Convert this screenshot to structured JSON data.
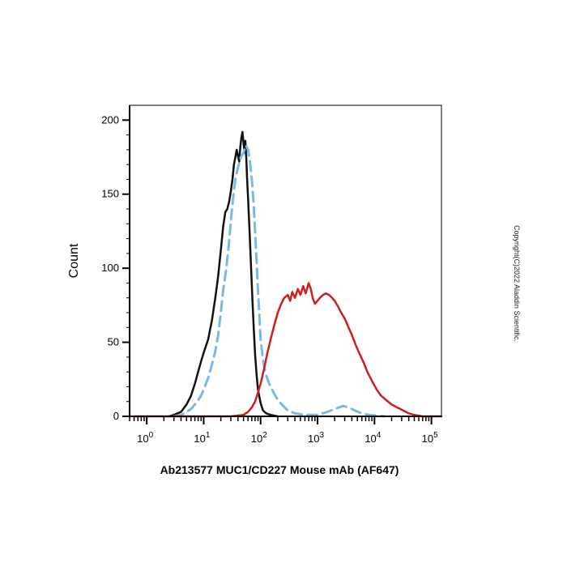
{
  "chart_data": {
    "type": "line",
    "title": "",
    "xlabel": "Ab213577 MUC1/CD227 Mouse mAb (AF647)",
    "ylabel": "Count",
    "x_scale": "log",
    "xlim": [
      0.5,
      150000
    ],
    "ylim": [
      0,
      210
    ],
    "x_ticks": [
      {
        "value": 1,
        "base": "10",
        "exp": "0"
      },
      {
        "value": 10,
        "base": "10",
        "exp": "1"
      },
      {
        "value": 100,
        "base": "10",
        "exp": "2"
      },
      {
        "value": 1000,
        "base": "10",
        "exp": "3"
      },
      {
        "value": 10000,
        "base": "10",
        "exp": "4"
      },
      {
        "value": 100000,
        "base": "10",
        "exp": "5"
      }
    ],
    "y_ticks": [
      {
        "value": 0,
        "label": "0"
      },
      {
        "value": 50,
        "label": "50"
      },
      {
        "value": 100,
        "label": "100"
      },
      {
        "value": 150,
        "label": "150"
      },
      {
        "value": 200,
        "label": "200"
      }
    ],
    "grid": false,
    "legend": "none",
    "series": [
      {
        "color": "#111111",
        "style": "solid",
        "points": [
          [
            2.5,
            0
          ],
          [
            3,
            1
          ],
          [
            4,
            3
          ],
          [
            5,
            8
          ],
          [
            6,
            14
          ],
          [
            7,
            22
          ],
          [
            8,
            30
          ],
          [
            9,
            37
          ],
          [
            10,
            43
          ],
          [
            12,
            52
          ],
          [
            14,
            65
          ],
          [
            16,
            80
          ],
          [
            18,
            95
          ],
          [
            20,
            112
          ],
          [
            22,
            128
          ],
          [
            24,
            138
          ],
          [
            26,
            140
          ],
          [
            28,
            145
          ],
          [
            30,
            152
          ],
          [
            32,
            160
          ],
          [
            34,
            170
          ],
          [
            36,
            175
          ],
          [
            38,
            180
          ],
          [
            40,
            176
          ],
          [
            42,
            172
          ],
          [
            44,
            182
          ],
          [
            46,
            188
          ],
          [
            48,
            192
          ],
          [
            50,
            185
          ],
          [
            52,
            178
          ],
          [
            54,
            186
          ],
          [
            56,
            175
          ],
          [
            58,
            160
          ],
          [
            60,
            148
          ],
          [
            64,
            125
          ],
          [
            68,
            100
          ],
          [
            72,
            78
          ],
          [
            76,
            58
          ],
          [
            80,
            42
          ],
          [
            85,
            28
          ],
          [
            90,
            18
          ],
          [
            100,
            9
          ],
          [
            110,
            4
          ],
          [
            125,
            2
          ],
          [
            150,
            1
          ],
          [
            200,
            0
          ]
        ]
      },
      {
        "color": "#7ab8e6",
        "style": "dashed",
        "points": [
          [
            3,
            0
          ],
          [
            4,
            1
          ],
          [
            5,
            3
          ],
          [
            6,
            5
          ],
          [
            7,
            8
          ],
          [
            8,
            11
          ],
          [
            9,
            14
          ],
          [
            10,
            18
          ],
          [
            12,
            26
          ],
          [
            14,
            35
          ],
          [
            16,
            44
          ],
          [
            18,
            55
          ],
          [
            20,
            70
          ],
          [
            22,
            85
          ],
          [
            25,
            100
          ],
          [
            28,
            118
          ],
          [
            30,
            132
          ],
          [
            33,
            148
          ],
          [
            36,
            160
          ],
          [
            40,
            168
          ],
          [
            45,
            175
          ],
          [
            50,
            178
          ],
          [
            55,
            183
          ],
          [
            60,
            180
          ],
          [
            65,
            172
          ],
          [
            70,
            160
          ],
          [
            75,
            145
          ],
          [
            80,
            125
          ],
          [
            85,
            105
          ],
          [
            90,
            85
          ],
          [
            95,
            68
          ],
          [
            100,
            52
          ],
          [
            110,
            38
          ],
          [
            120,
            30
          ],
          [
            135,
            24
          ],
          [
            150,
            20
          ],
          [
            175,
            15
          ],
          [
            200,
            11
          ],
          [
            250,
            7
          ],
          [
            300,
            4
          ],
          [
            400,
            2
          ],
          [
            600,
            1
          ],
          [
            1000,
            1
          ],
          [
            1500,
            3
          ],
          [
            2000,
            5
          ],
          [
            2800,
            7
          ],
          [
            3500,
            6
          ],
          [
            4500,
            4
          ],
          [
            6000,
            2
          ],
          [
            8000,
            1
          ],
          [
            15000,
            0
          ]
        ]
      },
      {
        "color": "#cc1f1f",
        "style": "solid",
        "points": [
          [
            0.6,
            0
          ],
          [
            10,
            0
          ],
          [
            30,
            0
          ],
          [
            50,
            1
          ],
          [
            60,
            3
          ],
          [
            70,
            6
          ],
          [
            80,
            10
          ],
          [
            90,
            16
          ],
          [
            100,
            22
          ],
          [
            115,
            32
          ],
          [
            130,
            42
          ],
          [
            150,
            52
          ],
          [
            175,
            62
          ],
          [
            200,
            70
          ],
          [
            230,
            76
          ],
          [
            260,
            80
          ],
          [
            300,
            82
          ],
          [
            330,
            78
          ],
          [
            360,
            84
          ],
          [
            400,
            80
          ],
          [
            450,
            86
          ],
          [
            500,
            82
          ],
          [
            560,
            88
          ],
          [
            620,
            83
          ],
          [
            700,
            90
          ],
          [
            760,
            86
          ],
          [
            820,
            80
          ],
          [
            900,
            76
          ],
          [
            1000,
            78
          ],
          [
            1100,
            80
          ],
          [
            1250,
            82
          ],
          [
            1400,
            83
          ],
          [
            1600,
            82
          ],
          [
            1800,
            80
          ],
          [
            2000,
            78
          ],
          [
            2300,
            74
          ],
          [
            2600,
            70
          ],
          [
            3000,
            66
          ],
          [
            3500,
            60
          ],
          [
            4000,
            55
          ],
          [
            4700,
            48
          ],
          [
            5500,
            42
          ],
          [
            6500,
            36
          ],
          [
            7500,
            30
          ],
          [
            9000,
            24
          ],
          [
            11000,
            18
          ],
          [
            13000,
            14
          ],
          [
            16000,
            11
          ],
          [
            20000,
            8
          ],
          [
            25000,
            6
          ],
          [
            32000,
            4
          ],
          [
            40000,
            2
          ],
          [
            50000,
            1
          ],
          [
            70000,
            0
          ],
          [
            150000,
            0
          ]
        ]
      }
    ]
  },
  "watermark": "Copyright(C)2022 Aladdin Scientific."
}
